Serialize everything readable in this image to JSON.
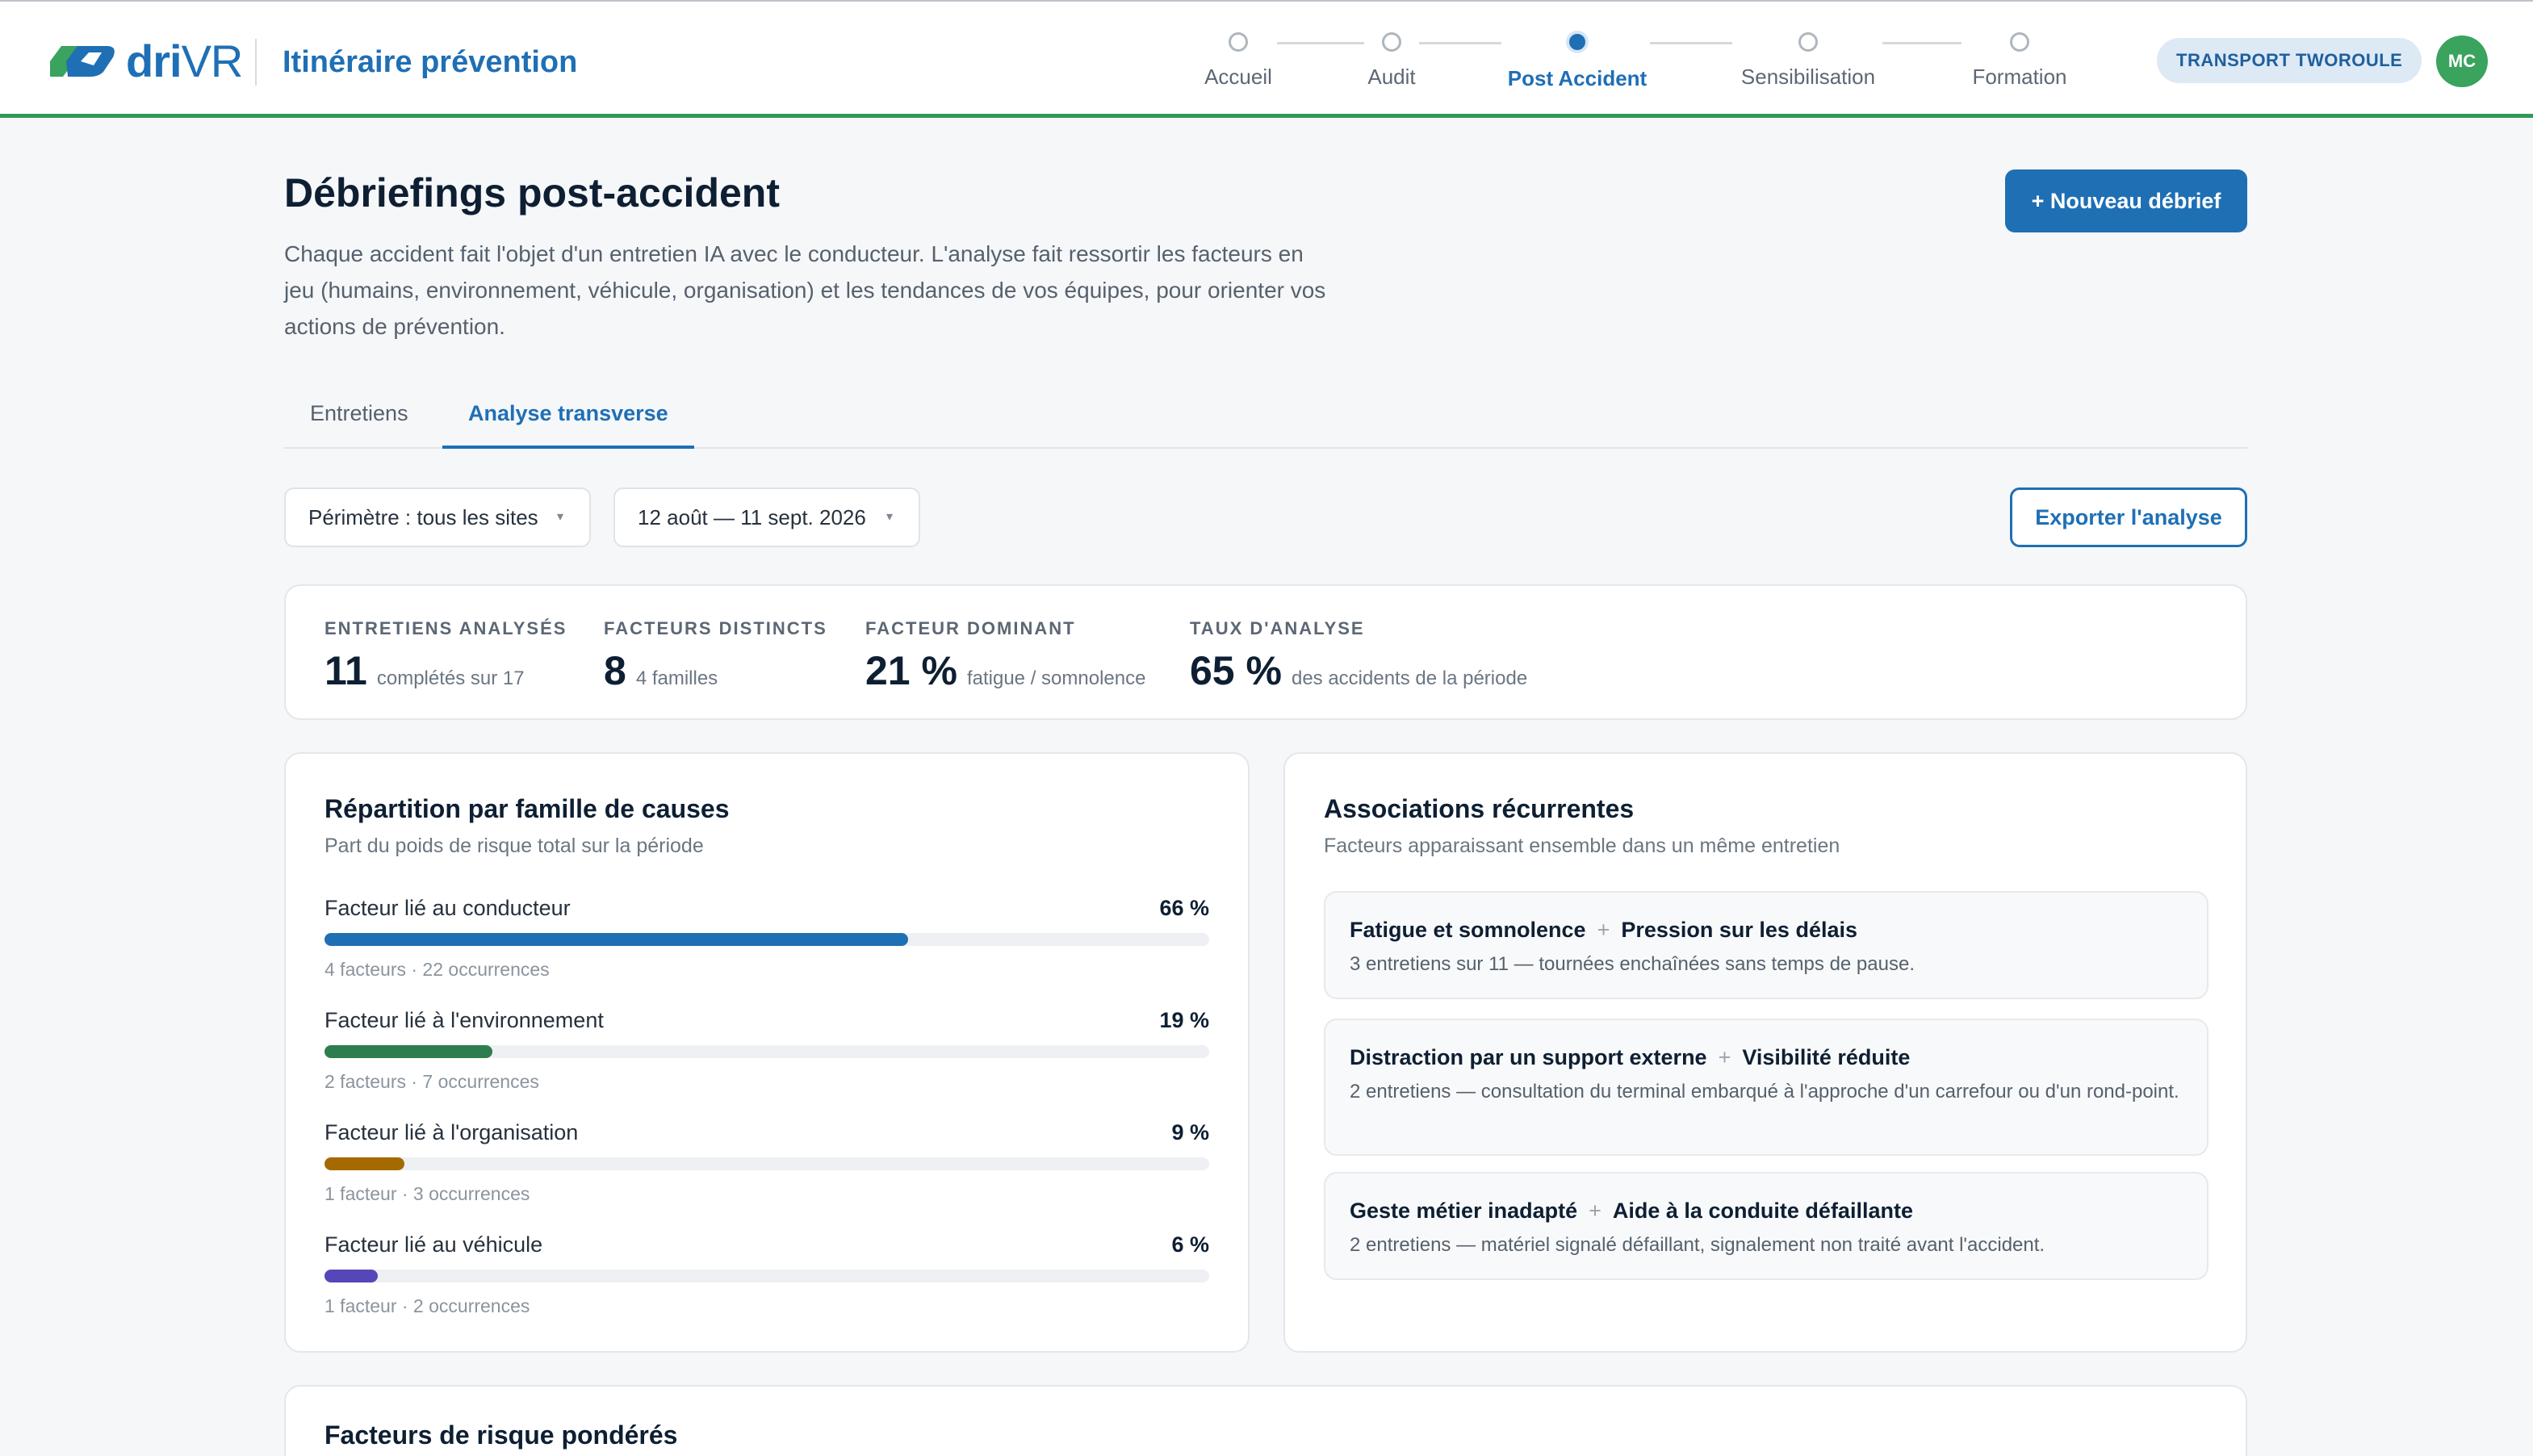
{
  "header": {
    "logo_text": "dri",
    "logo_text_2": "VR",
    "app_title": "Itinéraire prévention",
    "steps": [
      {
        "label": "Accueil"
      },
      {
        "label": "Audit"
      },
      {
        "label": "Post Accident"
      },
      {
        "label": "Sensibilisation"
      },
      {
        "label": "Formation"
      }
    ],
    "active_step": "Post Accident",
    "company": "TRANSPORT TWOROULE",
    "avatar_initials": "MC"
  },
  "page": {
    "title": "Débriefings post-accident",
    "description": "Chaque accident fait l'objet d'un entretien IA avec le conducteur. L'analyse fait ressortir les facteurs en jeu (humains, environnement, véhicule, organisation) et les tendances de vos équipes, pour orienter vos actions de prévention.",
    "new_button": "+ Nouveau débrief"
  },
  "tabs": [
    {
      "label": "Entretiens"
    },
    {
      "label": "Analyse transverse"
    }
  ],
  "active_tab": "Analyse transverse",
  "filters": {
    "scope": "Périmètre : tous les sites",
    "period": "12 août — 11 sept. 2026",
    "export_button": "Exporter l'analyse"
  },
  "kpis": [
    {
      "label": "ENTRETIENS ANALYSÉS",
      "value": "11",
      "sub": "complétés sur 17"
    },
    {
      "label": "FACTEURS DISTINCTS",
      "value": "8",
      "sub": "4 familles"
    },
    {
      "label": "FACTEUR DOMINANT",
      "value": "21 %",
      "sub": "fatigue / somnolence"
    },
    {
      "label": "TAUX D'ANALYSE",
      "value": "65 %",
      "sub": "des accidents de la période"
    }
  ],
  "distribution": {
    "title": "Répartition par famille de causes",
    "subtitle": "Part du poids de risque total sur la période",
    "families": [
      {
        "label": "Facteur lié au conducteur",
        "pct_text": "66 %",
        "pct": 66,
        "meta": "4 facteurs · 22 occurrences",
        "color": "#1f6fb5"
      },
      {
        "label": "Facteur lié à l'environnement",
        "pct_text": "19 %",
        "pct": 19,
        "meta": "2 facteurs · 7 occurrences",
        "color": "#2e7d4f"
      },
      {
        "label": "Facteur lié à l'organisation",
        "pct_text": "9 %",
        "pct": 9,
        "meta": "1 facteur · 3 occurrences",
        "color": "#a46a00"
      },
      {
        "label": "Facteur lié au véhicule",
        "pct_text": "6 %",
        "pct": 6,
        "meta": "1 facteur · 2 occurrences",
        "color": "#5647b8"
      }
    ]
  },
  "associations": {
    "title": "Associations récurrentes",
    "subtitle": "Facteurs apparaissant ensemble dans un même entretien",
    "plus_symbol": "+",
    "items": [
      {
        "factor_a": "Fatigue et somnolence",
        "factor_b": "Pression sur les délais",
        "desc": "3 entretiens sur 11 — tournées enchaînées sans temps de pause."
      },
      {
        "factor_a": "Distraction par un support externe",
        "factor_b": "Visibilité réduite",
        "desc": "2 entretiens — consultation du terminal embarqué à l'approche d'un carrefour ou d'un rond-point."
      },
      {
        "factor_a": "Geste métier inadapté",
        "factor_b": "Aide à la conduite défaillante",
        "desc": "2 entretiens — matériel signalé défaillant, signalement non traité avant l'accident."
      }
    ]
  },
  "risk_factors": {
    "title": "Facteurs de risque pondérés"
  }
}
